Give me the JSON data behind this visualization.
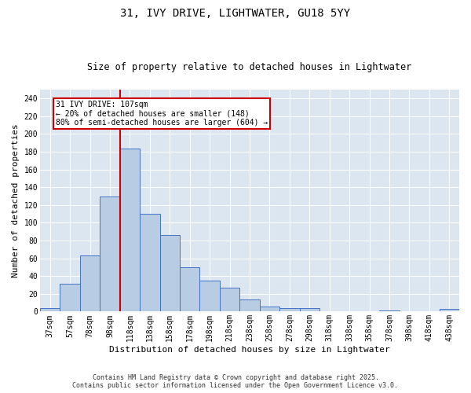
{
  "title_line1": "31, IVY DRIVE, LIGHTWATER, GU18 5YY",
  "title_line2": "Size of property relative to detached houses in Lightwater",
  "xlabel": "Distribution of detached houses by size in Lightwater",
  "ylabel": "Number of detached properties",
  "categories": [
    "37sqm",
    "57sqm",
    "78sqm",
    "98sqm",
    "118sqm",
    "138sqm",
    "158sqm",
    "178sqm",
    "198sqm",
    "218sqm",
    "238sqm",
    "258sqm",
    "278sqm",
    "298sqm",
    "318sqm",
    "338sqm",
    "358sqm",
    "378sqm",
    "398sqm",
    "418sqm",
    "438sqm"
  ],
  "values": [
    4,
    31,
    63,
    130,
    184,
    110,
    86,
    50,
    35,
    27,
    14,
    6,
    4,
    4,
    0,
    0,
    0,
    1,
    0,
    0,
    3
  ],
  "bar_color": "#b8cce4",
  "bar_edge_color": "#4472c4",
  "bg_color": "#dce6f1",
  "vline_x": 3.5,
  "vline_color": "#cc0000",
  "annotation_text": "31 IVY DRIVE: 107sqm\n← 20% of detached houses are smaller (148)\n80% of semi-detached houses are larger (604) →",
  "annotation_box_color": "#cc0000",
  "ylim": [
    0,
    250
  ],
  "yticks": [
    0,
    20,
    40,
    60,
    80,
    100,
    120,
    140,
    160,
    180,
    200,
    220,
    240
  ],
  "footer_line1": "Contains HM Land Registry data © Crown copyright and database right 2025.",
  "footer_line2": "Contains public sector information licensed under the Open Government Licence v3.0.",
  "title_fontsize": 10,
  "subtitle_fontsize": 8.5,
  "axis_label_fontsize": 8,
  "tick_fontsize": 7,
  "annotation_fontsize": 7,
  "footer_fontsize": 6
}
